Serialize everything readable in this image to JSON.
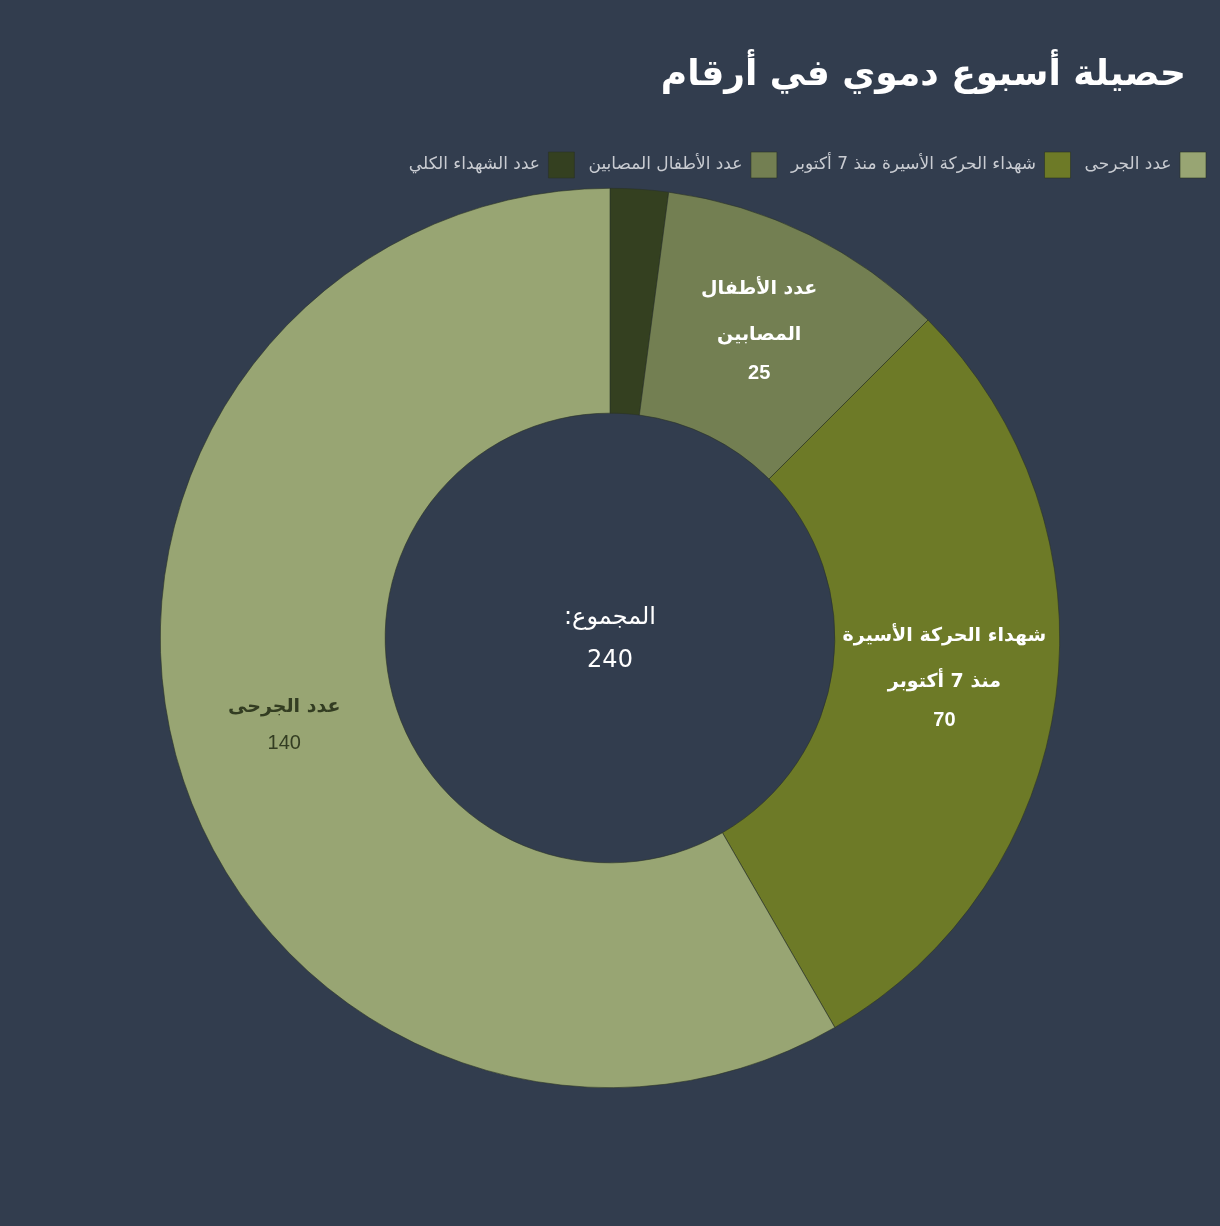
{
  "chart_data": {
    "type": "donut",
    "title": "حصيلة أسبوع دموي في أرقام",
    "categories": [
      "عدد الشهداء الكلي",
      "عدد الأطفال المصابين",
      "شهداء الحركة الأسيرة منذ 7 أكتوبر",
      "عدد الجرحى"
    ],
    "values": [
      5,
      25,
      70,
      140
    ],
    "colors": [
      "#344020",
      "#737f52",
      "#6d7a27",
      "#98a573"
    ],
    "value_labels": [
      null,
      "25",
      "70",
      "140"
    ],
    "legend": "top right",
    "annotations": [
      "المجموع: 240"
    ]
  }
}
